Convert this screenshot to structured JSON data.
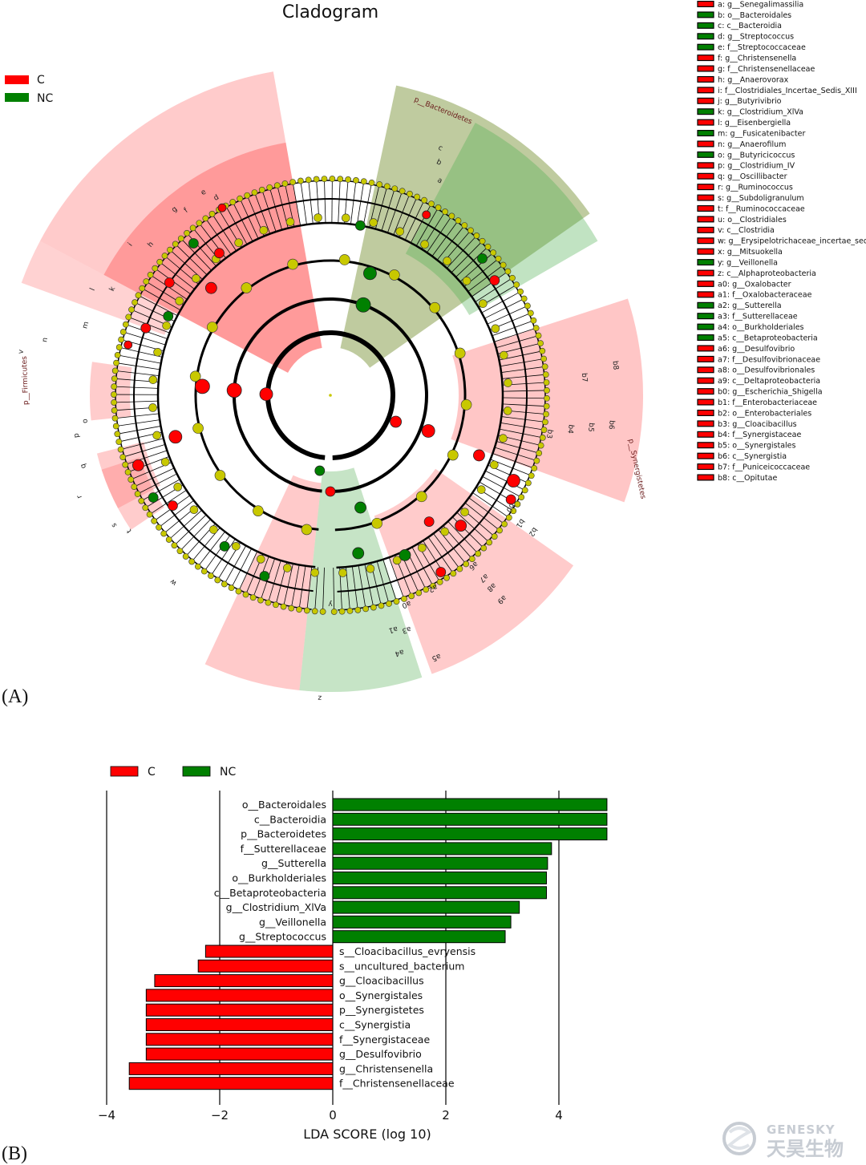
{
  "panel_a_label": "(A)",
  "panel_b_label": "(B)",
  "watermark": {
    "brand": "GENESKY",
    "brand_cn": "天昊生物"
  },
  "colors": {
    "C": "#ff0000",
    "NC": "#008000",
    "node": "#c8c800"
  },
  "cladogram": {
    "title": "Cladogram",
    "legend": [
      {
        "label": "C",
        "color": "#ff0000"
      },
      {
        "label": "NC",
        "color": "#008000"
      }
    ],
    "phylum_labels": [
      "p__Bacteroidetes",
      "p__Firmicutes",
      "p__Synergistetes"
    ],
    "key": [
      {
        "id": "a",
        "text": "a: g__Senegalimassilia",
        "group": "C"
      },
      {
        "id": "b",
        "text": "b: o__Bacteroidales",
        "group": "NC"
      },
      {
        "id": "c",
        "text": "c: c__Bacteroidia",
        "group": "NC"
      },
      {
        "id": "d",
        "text": "d: g__Streptococcus",
        "group": "NC"
      },
      {
        "id": "e",
        "text": "e: f__Streptococcaceae",
        "group": "NC"
      },
      {
        "id": "f",
        "text": "f: g__Christensenella",
        "group": "C"
      },
      {
        "id": "g",
        "text": "g: f__Christensenellaceae",
        "group": "C"
      },
      {
        "id": "h",
        "text": "h: g__Anaerovorax",
        "group": "C"
      },
      {
        "id": "i",
        "text": "i: f__Clostridiales_Incertae_Sedis_XIII",
        "group": "C"
      },
      {
        "id": "j",
        "text": "j: g__Butyrivibrio",
        "group": "C"
      },
      {
        "id": "k",
        "text": "k: g__Clostridium_XlVa",
        "group": "NC"
      },
      {
        "id": "l",
        "text": "l: g__Eisenbergiella",
        "group": "C"
      },
      {
        "id": "m",
        "text": "m: g__Fusicatenibacter",
        "group": "NC"
      },
      {
        "id": "n",
        "text": "n: g__Anaerofilum",
        "group": "C"
      },
      {
        "id": "o",
        "text": "o: g__Butyricicoccus",
        "group": "NC"
      },
      {
        "id": "p",
        "text": "p: g__Clostridium_IV",
        "group": "C"
      },
      {
        "id": "q",
        "text": "q: g__Oscillibacter",
        "group": "C"
      },
      {
        "id": "r",
        "text": "r: g__Ruminococcus",
        "group": "C"
      },
      {
        "id": "s",
        "text": "s: g__Subdoligranulum",
        "group": "C"
      },
      {
        "id": "t",
        "text": "t: f__Ruminococcaceae",
        "group": "C"
      },
      {
        "id": "u",
        "text": "u: o__Clostridiales",
        "group": "C"
      },
      {
        "id": "v",
        "text": "v: c__Clostridia",
        "group": "C"
      },
      {
        "id": "w",
        "text": "w: g__Erysipelotrichaceae_incertae_sedis",
        "group": "C"
      },
      {
        "id": "x",
        "text": "x: g__Mitsuokella",
        "group": "C"
      },
      {
        "id": "y",
        "text": "y: g__Veillonella",
        "group": "NC"
      },
      {
        "id": "z",
        "text": "z: c__Alphaproteobacteria",
        "group": "C"
      },
      {
        "id": "a0",
        "text": "a0: g__Oxalobacter",
        "group": "C"
      },
      {
        "id": "a1",
        "text": "a1: f__Oxalobacteraceae",
        "group": "C"
      },
      {
        "id": "a2",
        "text": "a2: g__Sutterella",
        "group": "NC"
      },
      {
        "id": "a3",
        "text": "a3: f__Sutterellaceae",
        "group": "NC"
      },
      {
        "id": "a4",
        "text": "a4: o__Burkholderiales",
        "group": "NC"
      },
      {
        "id": "a5",
        "text": "a5: c__Betaproteobacteria",
        "group": "NC"
      },
      {
        "id": "a6",
        "text": "a6: g__Desulfovibrio",
        "group": "C"
      },
      {
        "id": "a7",
        "text": "a7: f__Desulfovibrionaceae",
        "group": "C"
      },
      {
        "id": "a8",
        "text": "a8: o__Desulfovibrionales",
        "group": "C"
      },
      {
        "id": "a9",
        "text": "a9: c__Deltaproteobacteria",
        "group": "C"
      },
      {
        "id": "b0",
        "text": "b0: g__Escherichia_Shigella",
        "group": "C"
      },
      {
        "id": "b1",
        "text": "b1: f__Enterobacteriaceae",
        "group": "C"
      },
      {
        "id": "b2",
        "text": "b2: o__Enterobacteriales",
        "group": "C"
      },
      {
        "id": "b3",
        "text": "b3: g__Cloacibacillus",
        "group": "C"
      },
      {
        "id": "b4",
        "text": "b4: f__Synergistaceae",
        "group": "C"
      },
      {
        "id": "b5",
        "text": "b5: o__Synergistales",
        "group": "C"
      },
      {
        "id": "b6",
        "text": "b6: c__Synergistia",
        "group": "C"
      },
      {
        "id": "b7",
        "text": "b7: f__Puniceicoccaceae",
        "group": "C"
      },
      {
        "id": "b8",
        "text": "b8: c__Opitutae",
        "group": "C"
      }
    ]
  },
  "chart_data": {
    "type": "bar",
    "orientation": "horizontal",
    "title": "",
    "xlabel": "LDA SCORE (log 10)",
    "ylabel": "",
    "xlim": [
      -4,
      5
    ],
    "xticks": [
      -4,
      -2,
      0,
      2,
      4
    ],
    "xtick_labels": [
      "−4",
      "−2",
      "0",
      "2",
      "4"
    ],
    "grid": "vertical",
    "legend": [
      {
        "label": "C",
        "color": "#ff0000"
      },
      {
        "label": "NC",
        "color": "#008000"
      }
    ],
    "legend_position": "top-left",
    "series": [
      {
        "name": "NC",
        "color": "#008000"
      },
      {
        "name": "C",
        "color": "#ff0000"
      }
    ],
    "bars": [
      {
        "label": "o__Bacteroidales",
        "value": 4.85,
        "group": "NC"
      },
      {
        "label": "c__Bacteroidia",
        "value": 4.85,
        "group": "NC"
      },
      {
        "label": "p__Bacteroidetes",
        "value": 4.85,
        "group": "NC"
      },
      {
        "label": "f__Sutterellaceae",
        "value": 3.87,
        "group": "NC"
      },
      {
        "label": "g__Sutterella",
        "value": 3.8,
        "group": "NC"
      },
      {
        "label": "o__Burkholderiales",
        "value": 3.78,
        "group": "NC"
      },
      {
        "label": "c__Betaproteobacteria",
        "value": 3.78,
        "group": "NC"
      },
      {
        "label": "g__Clostridium_XlVa",
        "value": 3.3,
        "group": "NC"
      },
      {
        "label": "g__Veillonella",
        "value": 3.15,
        "group": "NC"
      },
      {
        "label": "g__Streptococcus",
        "value": 3.05,
        "group": "NC"
      },
      {
        "label": "s__Cloacibacillus_evryensis",
        "value": -2.25,
        "group": "C"
      },
      {
        "label": "s__uncultured_bacterium",
        "value": -2.38,
        "group": "C"
      },
      {
        "label": "g__Cloacibacillus",
        "value": -3.15,
        "group": "C"
      },
      {
        "label": "o__Synergistales",
        "value": -3.3,
        "group": "C"
      },
      {
        "label": "p__Synergistetes",
        "value": -3.3,
        "group": "C"
      },
      {
        "label": "c__Synergistia",
        "value": -3.3,
        "group": "C"
      },
      {
        "label": "f__Synergistaceae",
        "value": -3.3,
        "group": "C"
      },
      {
        "label": "g__Desulfovibrio",
        "value": -3.3,
        "group": "C"
      },
      {
        "label": "g__Christensenella",
        "value": -3.6,
        "group": "C"
      },
      {
        "label": "f__Christensenellaceae",
        "value": -3.6,
        "group": "C"
      }
    ]
  }
}
